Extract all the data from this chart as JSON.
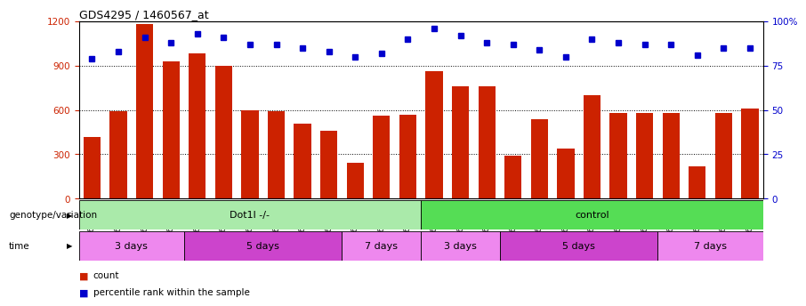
{
  "title": "GDS4295 / 1460567_at",
  "samples": [
    "GSM636698",
    "GSM636699",
    "GSM636700",
    "GSM636701",
    "GSM636702",
    "GSM636707",
    "GSM636708",
    "GSM636709",
    "GSM636710",
    "GSM636711",
    "GSM636717",
    "GSM636718",
    "GSM636719",
    "GSM636703",
    "GSM636704",
    "GSM636705",
    "GSM636706",
    "GSM636712",
    "GSM636713",
    "GSM636714",
    "GSM636715",
    "GSM636716",
    "GSM636720",
    "GSM636721",
    "GSM636722",
    "GSM636723"
  ],
  "counts": [
    420,
    590,
    1180,
    930,
    980,
    900,
    600,
    590,
    510,
    460,
    240,
    560,
    570,
    860,
    760,
    760,
    290,
    540,
    340,
    700,
    580,
    580,
    580,
    220,
    580,
    610
  ],
  "percentiles": [
    79,
    83,
    91,
    88,
    93,
    91,
    87,
    87,
    85,
    83,
    80,
    82,
    90,
    96,
    92,
    88,
    87,
    84,
    80,
    90,
    88,
    87,
    87,
    81,
    85,
    85
  ],
  "ylim_left": [
    0,
    1200
  ],
  "ylim_right": [
    0,
    100
  ],
  "yticks_left": [
    0,
    300,
    600,
    900,
    1200
  ],
  "yticks_right": [
    0,
    25,
    50,
    75,
    100
  ],
  "ytick_labels_right": [
    "0",
    "25",
    "50",
    "75",
    "100%"
  ],
  "bar_color": "#CC2200",
  "dot_color": "#0000CC",
  "bg_color": "#ffffff",
  "genotype_groups": [
    {
      "label": "Dot1l -/-",
      "start": 0,
      "end": 13,
      "color": "#AAEAAA"
    },
    {
      "label": "control",
      "start": 13,
      "end": 26,
      "color": "#55DD55"
    }
  ],
  "time_groups": [
    {
      "label": "3 days",
      "start": 0,
      "end": 4,
      "color": "#EE88EE"
    },
    {
      "label": "5 days",
      "start": 4,
      "end": 10,
      "color": "#CC44CC"
    },
    {
      "label": "7 days",
      "start": 10,
      "end": 13,
      "color": "#EE88EE"
    },
    {
      "label": "3 days",
      "start": 13,
      "end": 16,
      "color": "#EE88EE"
    },
    {
      "label": "5 days",
      "start": 16,
      "end": 22,
      "color": "#CC44CC"
    },
    {
      "label": "7 days",
      "start": 22,
      "end": 26,
      "color": "#EE88EE"
    }
  ],
  "legend_count_color": "#CC2200",
  "legend_dot_color": "#0000CC",
  "genotype_label": "genotype/variation",
  "time_label": "time"
}
